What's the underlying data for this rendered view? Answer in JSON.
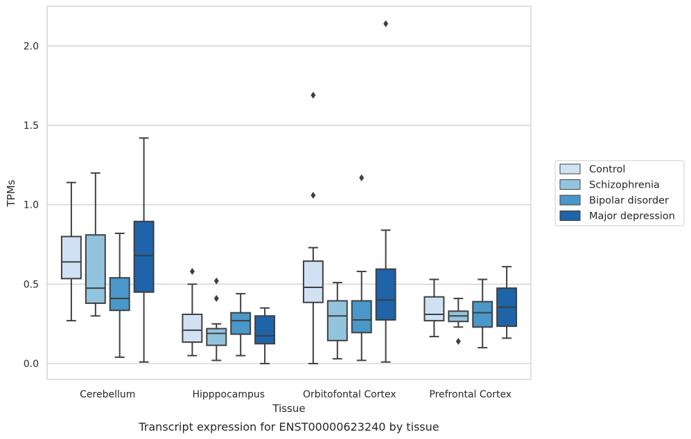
{
  "chart_data": {
    "type": "box",
    "xlabel": "Tissue",
    "ylabel": "TPMs",
    "caption": "Transcript expression for ENST00000623240 by tissue",
    "ylim": [
      -0.1,
      2.25
    ],
    "yticks": [
      "0.0",
      "0.5",
      "1.0",
      "1.5",
      "2.0"
    ],
    "grid": "horizontal",
    "legend_position": "right",
    "categories": [
      "Cerebellum",
      "Hipppocampus",
      "Orbitofontal Cortex",
      "Prefrontal Cortex"
    ],
    "series": [
      {
        "name": "Control",
        "color": "#cfe1f2",
        "boxes": [
          {
            "whislo": 0.27,
            "q1": 0.535,
            "med": 0.64,
            "q3": 0.8,
            "whishi": 1.14,
            "fliers": []
          },
          {
            "whislo": 0.05,
            "q1": 0.135,
            "med": 0.21,
            "q3": 0.31,
            "whishi": 0.5,
            "fliers": [
              0.58
            ]
          },
          {
            "whislo": 0.0,
            "q1": 0.385,
            "med": 0.48,
            "q3": 0.645,
            "whishi": 0.73,
            "fliers": [
              1.06,
              1.69
            ]
          },
          {
            "whislo": 0.17,
            "q1": 0.27,
            "med": 0.31,
            "q3": 0.42,
            "whishi": 0.53,
            "fliers": []
          }
        ]
      },
      {
        "name": "Schizophrenia",
        "color": "#93c4de",
        "boxes": [
          {
            "whislo": 0.3,
            "q1": 0.38,
            "med": 0.475,
            "q3": 0.81,
            "whishi": 1.2,
            "fliers": []
          },
          {
            "whislo": 0.02,
            "q1": 0.115,
            "med": 0.19,
            "q3": 0.22,
            "whishi": 0.25,
            "fliers": [
              0.41,
              0.52
            ]
          },
          {
            "whislo": 0.03,
            "q1": 0.145,
            "med": 0.3,
            "q3": 0.395,
            "whishi": 0.51,
            "fliers": []
          },
          {
            "whislo": 0.23,
            "q1": 0.265,
            "med": 0.3,
            "q3": 0.33,
            "whishi": 0.41,
            "fliers": [
              0.14
            ]
          }
        ]
      },
      {
        "name": "Bipolar disorder",
        "color": "#4a97c9",
        "boxes": [
          {
            "whislo": 0.04,
            "q1": 0.335,
            "med": 0.41,
            "q3": 0.54,
            "whishi": 0.82,
            "fliers": []
          },
          {
            "whislo": 0.05,
            "q1": 0.185,
            "med": 0.27,
            "q3": 0.32,
            "whishi": 0.44,
            "fliers": []
          },
          {
            "whislo": 0.02,
            "q1": 0.195,
            "med": 0.275,
            "q3": 0.395,
            "whishi": 0.58,
            "fliers": [
              1.17
            ]
          },
          {
            "whislo": 0.1,
            "q1": 0.23,
            "med": 0.32,
            "q3": 0.39,
            "whishi": 0.53,
            "fliers": []
          }
        ]
      },
      {
        "name": "Major depression",
        "color": "#1f63a8",
        "boxes": [
          {
            "whislo": 0.01,
            "q1": 0.45,
            "med": 0.68,
            "q3": 0.895,
            "whishi": 1.42,
            "fliers": []
          },
          {
            "whislo": 0.0,
            "q1": 0.125,
            "med": 0.175,
            "q3": 0.3,
            "whishi": 0.35,
            "fliers": []
          },
          {
            "whislo": 0.01,
            "q1": 0.275,
            "med": 0.4,
            "q3": 0.595,
            "whishi": 0.84,
            "fliers": [
              2.14
            ]
          },
          {
            "whislo": 0.16,
            "q1": 0.235,
            "med": 0.355,
            "q3": 0.475,
            "whishi": 0.61,
            "fliers": []
          }
        ]
      }
    ]
  }
}
